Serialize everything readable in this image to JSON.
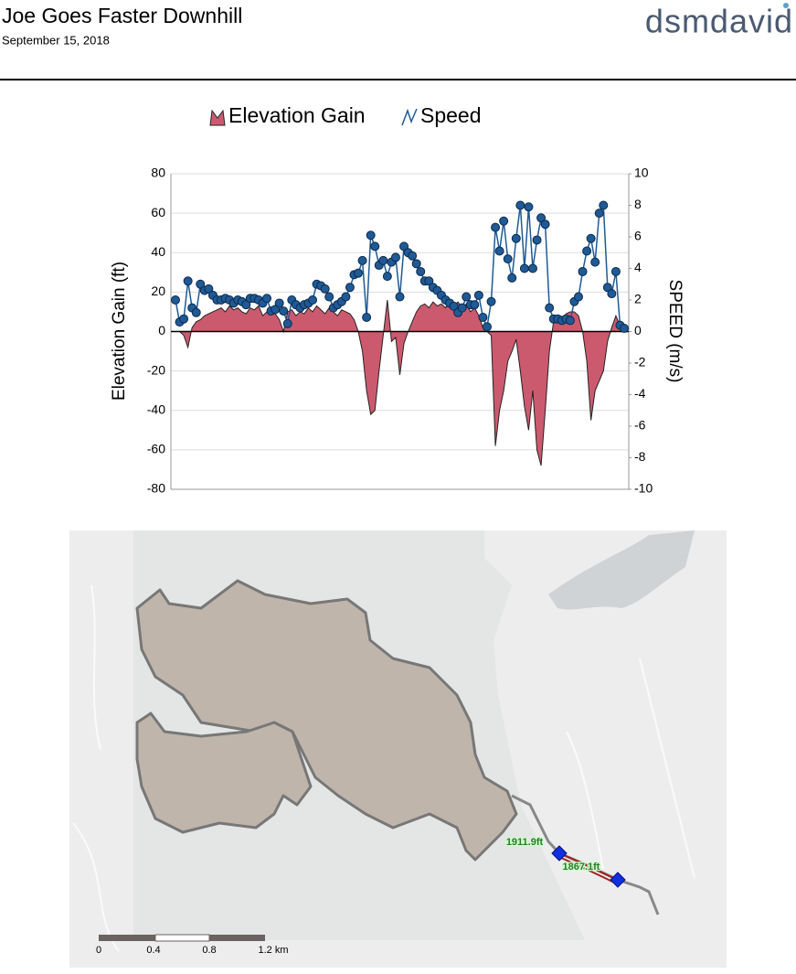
{
  "header": {
    "title": "Joe Goes Faster Downhill",
    "date": "September 15, 2018",
    "logo": "dsmdavid"
  },
  "chart_data": {
    "type": "combo",
    "y_label": "Elevation Gain (ft)",
    "y2_label": "SPEED (m/s)",
    "ylim": [
      -80,
      80
    ],
    "yticks": [
      80,
      60,
      40,
      20,
      0,
      -20,
      -40,
      -60,
      -80
    ],
    "y2lim": [
      -10,
      10
    ],
    "y2ticks": [
      10,
      8,
      6,
      4,
      2,
      0,
      -2,
      -4,
      -6,
      -8,
      -10
    ],
    "grid": true,
    "series": [
      {
        "name": "Elevation Gain",
        "type": "area",
        "color": "#cc5a6e",
        "values": [
          0,
          0,
          -2,
          -8,
          2,
          5,
          6,
          8,
          9,
          10,
          11,
          12,
          10,
          13,
          11,
          12,
          10,
          9,
          12,
          11,
          13,
          8,
          10,
          12,
          9,
          6,
          0,
          10,
          11,
          8,
          10,
          9,
          12,
          10,
          13,
          11,
          9,
          12,
          10,
          8,
          11,
          10,
          9,
          6,
          0,
          -10,
          -30,
          -42,
          -40,
          -20,
          -2,
          16,
          -5,
          -3,
          -22,
          -6,
          0,
          5,
          10,
          13,
          14,
          12,
          15,
          13,
          14,
          12,
          16,
          13,
          15,
          12,
          14,
          10,
          12,
          8,
          2,
          0,
          -2,
          -58,
          -40,
          -30,
          -15,
          -10,
          -4,
          -20,
          -38,
          -50,
          -30,
          -60,
          -68,
          -40,
          -10,
          5,
          8,
          6,
          9,
          10,
          10,
          8,
          0,
          -15,
          -45,
          -30,
          -25,
          -20,
          -5,
          2,
          8,
          3,
          0
        ]
      },
      {
        "name": "Speed",
        "type": "line",
        "axis": "y2",
        "color": "#1f5a96",
        "values": [
          2,
          0.6,
          0.8,
          3.2,
          1.5,
          1.2,
          3,
          2.6,
          2.7,
          2.3,
          2,
          2,
          2.1,
          2,
          1.8,
          2,
          1.9,
          1.7,
          2.1,
          2.1,
          2,
          1.8,
          2.1,
          1.3,
          1.4,
          1.8,
          1.3,
          0.5,
          2,
          1.7,
          1.5,
          1.7,
          1.8,
          2,
          3,
          2.9,
          2.7,
          2.2,
          1.5,
          1.7,
          1.9,
          2.2,
          2.8,
          3.6,
          3.7,
          4.5,
          0.9,
          6.1,
          5.4,
          4.2,
          4.5,
          3.5,
          4.4,
          4.7,
          2.2,
          5.4,
          5,
          4.8,
          4.3,
          3.8,
          3.2,
          3.2,
          2.8,
          2.6,
          2.3,
          2,
          1.8,
          1.6,
          1.2,
          1.5,
          2.2,
          1.7,
          1.7,
          2.3,
          0.9,
          0.3,
          1.9,
          6.6,
          5.1,
          7,
          4.6,
          3.4,
          5.9,
          8,
          4,
          7.9,
          4,
          5.8,
          7.2,
          6.8,
          1.5,
          0.8,
          0.8,
          0.7,
          0.8,
          0.7,
          1.9,
          2.2,
          3.8,
          5.1,
          5.9,
          4.4,
          7.5,
          8,
          2.8,
          2.4,
          3.8,
          0.4,
          0.2
        ]
      }
    ]
  },
  "map": {
    "labels": [
      "1911.9ft",
      "1867.1ft"
    ],
    "scale_labels": [
      "0",
      "0.4",
      "0.8",
      "1.2 km"
    ]
  }
}
